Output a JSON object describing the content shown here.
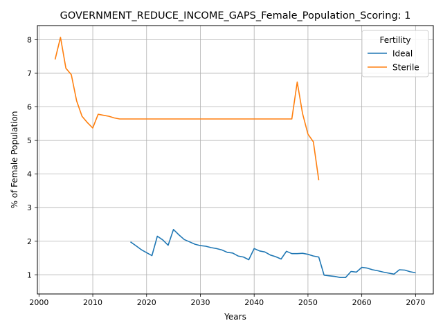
{
  "chart_data": {
    "type": "line",
    "title": "GOVERNMENT_REDUCE_INCOME_GAPS_Female_Population_Scoring: 1",
    "xlabel": "Years",
    "ylabel": "% of Female Population",
    "xlim": [
      1999.7,
      2073.3
    ],
    "ylim": [
      0.43,
      8.42
    ],
    "xticks": [
      2000,
      2010,
      2020,
      2030,
      2040,
      2050,
      2060,
      2070
    ],
    "yticks": [
      1,
      2,
      3,
      4,
      5,
      6,
      7,
      8
    ],
    "grid": true,
    "legend": {
      "title": "Fertility",
      "placement": "top-right"
    },
    "series": [
      {
        "name": "Ideal",
        "color": "#1f77b4",
        "x": [
          2017,
          2018,
          2019,
          2020,
          2021,
          2022,
          2023,
          2024,
          2025,
          2026,
          2027,
          2028,
          2029,
          2030,
          2031,
          2032,
          2033,
          2034,
          2035,
          2036,
          2037,
          2038,
          2039,
          2040,
          2041,
          2042,
          2043,
          2044,
          2045,
          2046,
          2047,
          2048,
          2049,
          2050,
          2051,
          2052,
          2053,
          2054,
          2055,
          2056,
          2057,
          2058,
          2059,
          2060,
          2061,
          2062,
          2063,
          2064,
          2065,
          2066,
          2067,
          2068,
          2069,
          2070
        ],
        "y": [
          1.98,
          1.87,
          1.75,
          1.66,
          1.57,
          2.15,
          2.04,
          1.88,
          2.35,
          2.19,
          2.05,
          1.98,
          1.91,
          1.87,
          1.85,
          1.81,
          1.78,
          1.74,
          1.67,
          1.65,
          1.56,
          1.53,
          1.45,
          1.78,
          1.71,
          1.68,
          1.59,
          1.54,
          1.47,
          1.7,
          1.63,
          1.63,
          1.64,
          1.61,
          1.56,
          1.53,
          0.99,
          0.97,
          0.95,
          0.92,
          0.92,
          1.1,
          1.08,
          1.22,
          1.2,
          1.15,
          1.12,
          1.08,
          1.05,
          1.02,
          1.15,
          1.14,
          1.09,
          1.06
        ]
      },
      {
        "name": "Sterile",
        "color": "#ff7f0e",
        "x": [
          2003,
          2004,
          2005,
          2006,
          2007,
          2008,
          2009,
          2010,
          2011,
          2012,
          2013,
          2014,
          2015,
          2016,
          2017,
          2018,
          2019,
          2020,
          2021,
          2022,
          2023,
          2024,
          2025,
          2026,
          2027,
          2028,
          2029,
          2030,
          2031,
          2032,
          2033,
          2034,
          2035,
          2036,
          2037,
          2038,
          2039,
          2040,
          2041,
          2042,
          2043,
          2044,
          2045,
          2046,
          2047,
          2048,
          2049,
          2050,
          2051,
          2052
        ],
        "y": [
          7.41,
          8.07,
          7.15,
          6.96,
          6.18,
          5.72,
          5.53,
          5.37,
          5.78,
          5.75,
          5.72,
          5.67,
          5.64,
          5.64,
          5.64,
          5.64,
          5.64,
          5.64,
          5.64,
          5.64,
          5.64,
          5.64,
          5.64,
          5.64,
          5.64,
          5.64,
          5.64,
          5.64,
          5.64,
          5.64,
          5.64,
          5.64,
          5.64,
          5.64,
          5.64,
          5.64,
          5.64,
          5.64,
          5.64,
          5.64,
          5.64,
          5.64,
          5.64,
          5.64,
          5.64,
          6.74,
          5.8,
          5.19,
          4.96,
          3.82
        ]
      }
    ]
  }
}
